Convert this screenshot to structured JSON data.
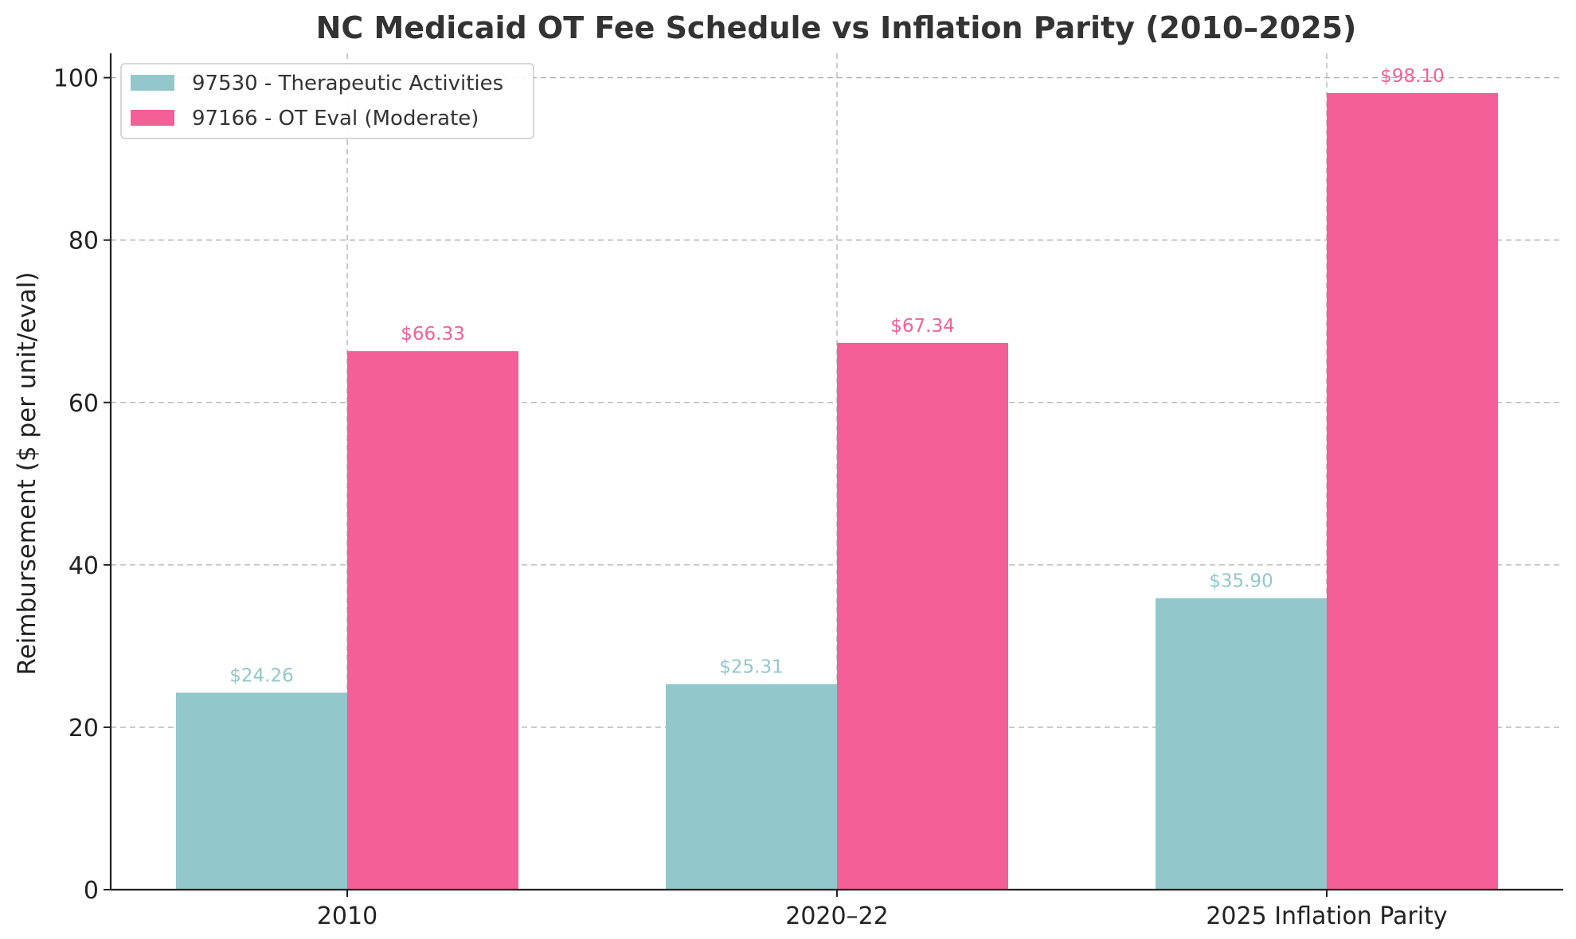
{
  "chart_data": {
    "type": "bar",
    "title": "NC Medicaid OT Fee Schedule vs Inflation Parity (2010–2025)",
    "xlabel": "",
    "ylabel": "Reimbursement ($ per unit/eval)",
    "categories": [
      "2010",
      "2020–22",
      "2025 Inflation Parity"
    ],
    "series": [
      {
        "name": "97530 - Therapeutic Activities",
        "color": "#92c7cb",
        "values": [
          24.26,
          25.31,
          35.9
        ],
        "labels": [
          "$24.26",
          "$25.31",
          "$35.90"
        ]
      },
      {
        "name": "97166 - OT Eval (Moderate)",
        "color": "#f45f97",
        "values": [
          66.33,
          67.34,
          98.1
        ],
        "labels": [
          "$66.33",
          "$67.34",
          "$98.10"
        ]
      }
    ],
    "ylim": [
      0,
      103
    ],
    "yticks": [
      0,
      20,
      40,
      60,
      80,
      100
    ],
    "grid": true,
    "legend_position": "top-left"
  }
}
